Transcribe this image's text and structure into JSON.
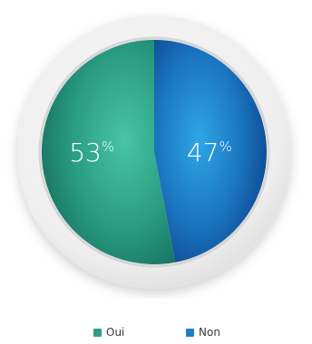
{
  "chart_data": {
    "type": "pie",
    "categories": [
      "Oui",
      "Non"
    ],
    "values": [
      53,
      47
    ],
    "labels": [
      "53",
      "47"
    ],
    "unit": "%",
    "legend_position": "bottom",
    "colors": [
      "#2e9e86",
      "#1f7fc4"
    ]
  }
}
